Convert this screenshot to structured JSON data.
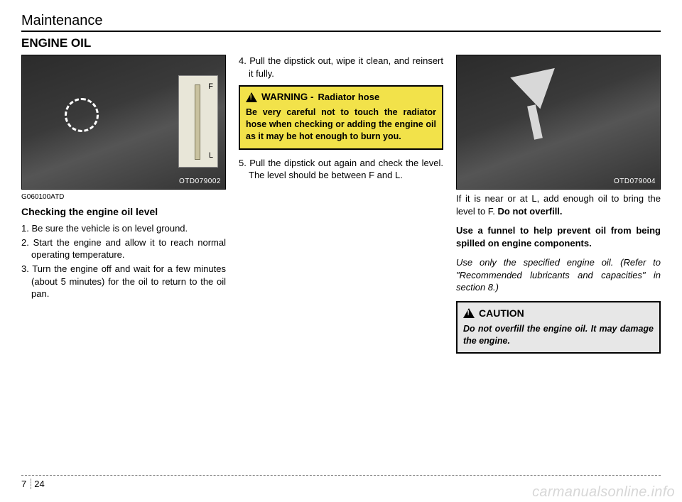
{
  "header": {
    "section": "Maintenance"
  },
  "heading": "ENGINE OIL",
  "col1": {
    "photo_code": "OTD079002",
    "ref_code": "G060100ATD",
    "subheading": "Checking the engine oil level",
    "steps": [
      "1. Be sure the vehicle is on level ground.",
      "2. Start the engine and allow it to reach normal operating temperature.",
      "3. Turn the engine off and wait for a few minutes (about 5 minutes) for the oil to return to the oil pan."
    ]
  },
  "col2": {
    "step4": "4. Pull the dipstick out, wipe it clean, and reinsert it fully.",
    "warning": {
      "title": "WARNING -",
      "subtitle": "Radiator hose",
      "text": "Be very careful not to touch the radiator hose when checking or adding the engine oil as it may be hot enough to burn you."
    },
    "step5": "5. Pull the dipstick out again and check the level. The level should be between F and L."
  },
  "col3": {
    "photo_code": "OTD079004",
    "para1a": "If it is near or at L, add enough oil to bring the level to F. ",
    "para1b": "Do not overfill.",
    "para2": "Use a funnel to help prevent oil from being spilled on engine components.",
    "para3": "Use only the specified engine oil. (Refer to \"Recommended lubricants and capacities\" in section 8.)",
    "caution": {
      "title": "CAUTION",
      "text": "Do not overfill the engine oil. It may damage the engine."
    }
  },
  "footer": {
    "chapter": "7",
    "page": "24"
  },
  "watermark": "carmanualsonline.info",
  "colors": {
    "warning_bg": "#f2e24a",
    "caution_bg": "#e7e7e7",
    "border": "#000000",
    "text": "#000000",
    "watermark": "#d7d7d7"
  }
}
